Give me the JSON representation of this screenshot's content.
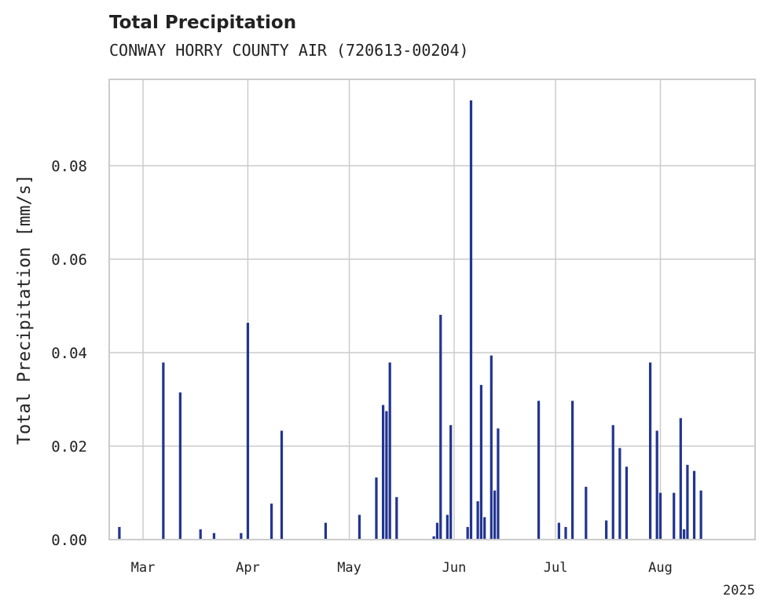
{
  "chart_data": {
    "type": "bar",
    "title": "Total Precipitation",
    "subtitle": "CONWAY HORRY COUNTY AIR (720613-00204)",
    "xlabel": "",
    "ylabel": "Total Precipitation [mm/s]",
    "year_label": "2025",
    "ylim": [
      0,
      0.0985
    ],
    "yticks": [
      {
        "value": 0.0,
        "label": "0.00"
      },
      {
        "value": 0.02,
        "label": "0.02"
      },
      {
        "value": 0.04,
        "label": "0.04"
      },
      {
        "value": 0.06,
        "label": "0.06"
      },
      {
        "value": 0.08,
        "label": "0.08"
      }
    ],
    "xlim": [
      "2025-02-19",
      "2025-08-29"
    ],
    "xticks": [
      {
        "date": "2025-03-01",
        "label": "Mar"
      },
      {
        "date": "2025-04-01",
        "label": "Apr"
      },
      {
        "date": "2025-05-01",
        "label": "May"
      },
      {
        "date": "2025-06-01",
        "label": "Jun"
      },
      {
        "date": "2025-07-01",
        "label": "Jul"
      },
      {
        "date": "2025-08-01",
        "label": "Aug"
      }
    ],
    "grid": true,
    "color": "#233591",
    "x": [
      "2025-02-22",
      "2025-03-07",
      "2025-03-12",
      "2025-03-18",
      "2025-03-22",
      "2025-03-30",
      "2025-04-01",
      "2025-04-08",
      "2025-04-11",
      "2025-04-24",
      "2025-05-04",
      "2025-05-09",
      "2025-05-11",
      "2025-05-12",
      "2025-05-13",
      "2025-05-15",
      "2025-05-26",
      "2025-05-27",
      "2025-05-28",
      "2025-05-30",
      "2025-05-31",
      "2025-06-05",
      "2025-06-06",
      "2025-06-08",
      "2025-06-09",
      "2025-06-10",
      "2025-06-12",
      "2025-06-13",
      "2025-06-14",
      "2025-06-15",
      "2025-06-26",
      "2025-07-02",
      "2025-07-04",
      "2025-07-06",
      "2025-07-10",
      "2025-07-16",
      "2025-07-18",
      "2025-07-20",
      "2025-07-22",
      "2025-07-24",
      "2025-07-29",
      "2025-07-31",
      "2025-08-01",
      "2025-08-03",
      "2025-08-05",
      "2025-08-07",
      "2025-08-08",
      "2025-08-09",
      "2025-08-11",
      "2025-08-13"
    ],
    "values": [
      0.0027,
      0.0379,
      0.0315,
      0.0022,
      0.0014,
      0.0014,
      0.0464,
      0.0077,
      0.0233,
      0.0036,
      0.0053,
      0.0133,
      0.0288,
      0.0275,
      0.0379,
      0.0091,
      0.0007,
      0.0036,
      0.0481,
      0.0053,
      0.0245,
      0.0027,
      0.094,
      0.0082,
      0.0331,
      0.0048,
      0.0394,
      0.0105,
      0.0238,
      0.0,
      0.0297,
      0.0036,
      0.0027,
      0.0297,
      0.0113,
      0.0041,
      0.0245,
      0.0196,
      0.0156,
      0.0,
      0.0379,
      0.0233,
      0.01,
      0.0,
      0.01,
      0.026,
      0.0022,
      0.016,
      0.0147,
      0.0105
    ]
  }
}
